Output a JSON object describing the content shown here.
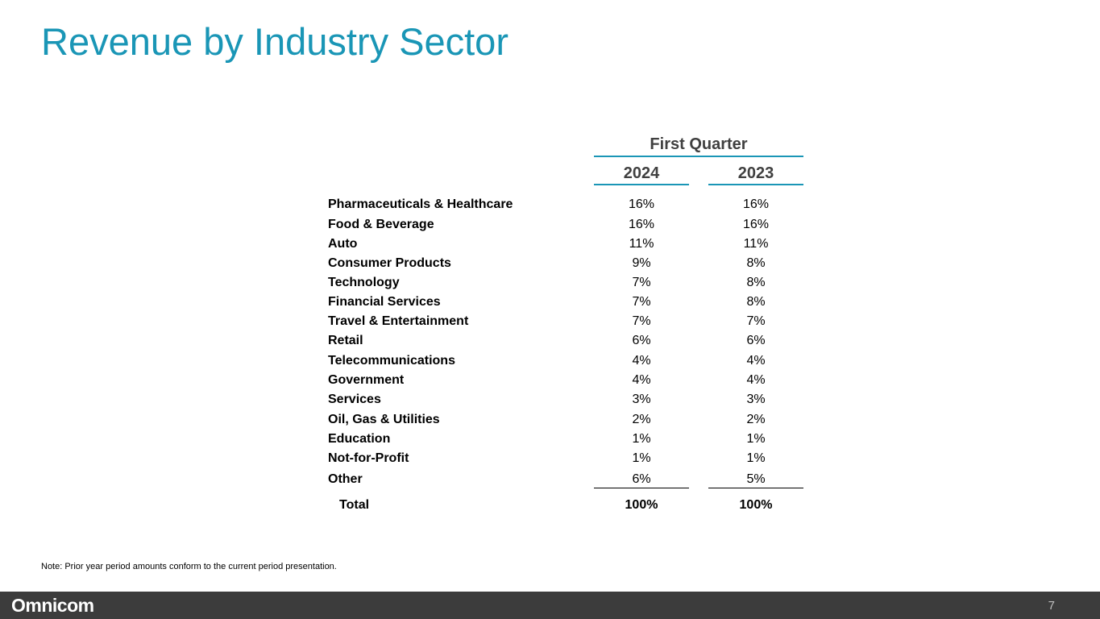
{
  "title": "Revenue by Industry Sector",
  "table": {
    "group_header": "First Quarter",
    "years": [
      "2024",
      "2023"
    ],
    "rows": [
      {
        "label": "Pharmaceuticals & Healthcare",
        "v2024": "16%",
        "v2023": "16%"
      },
      {
        "label": "Food & Beverage",
        "v2024": "16%",
        "v2023": "16%"
      },
      {
        "label": "Auto",
        "v2024": "11%",
        "v2023": "11%"
      },
      {
        "label": "Consumer Products",
        "v2024": "9%",
        "v2023": "8%"
      },
      {
        "label": "Technology",
        "v2024": "7%",
        "v2023": "8%"
      },
      {
        "label": "Financial Services",
        "v2024": "7%",
        "v2023": "8%"
      },
      {
        "label": "Travel & Entertainment",
        "v2024": "7%",
        "v2023": "7%"
      },
      {
        "label": "Retail",
        "v2024": "6%",
        "v2023": "6%"
      },
      {
        "label": "Telecommunications",
        "v2024": "4%",
        "v2023": "4%"
      },
      {
        "label": "Government",
        "v2024": "4%",
        "v2023": "4%"
      },
      {
        "label": "Services",
        "v2024": "3%",
        "v2023": "3%"
      },
      {
        "label": "Oil, Gas & Utilities",
        "v2024": "2%",
        "v2023": "2%"
      },
      {
        "label": "Education",
        "v2024": "1%",
        "v2023": "1%"
      },
      {
        "label": "Not-for-Profit",
        "v2024": "1%",
        "v2023": "1%"
      },
      {
        "label": "Other",
        "v2024": "6%",
        "v2023": "5%"
      }
    ],
    "total": {
      "label": "Total",
      "v2024": "100%",
      "v2023": "100%"
    }
  },
  "note": "Note:  Prior year period amounts conform to the current period presentation.",
  "footer": {
    "logo": "Omnicom",
    "page_number": "7"
  },
  "colors": {
    "accent": "#1a96b6",
    "footer_bg": "#3c3c3c"
  }
}
